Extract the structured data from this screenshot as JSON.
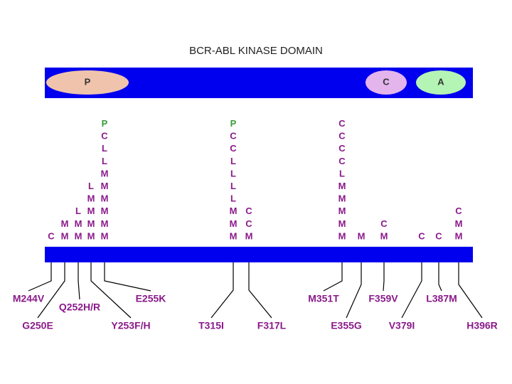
{
  "title": "BCR-ABL KINASE DOMAIN",
  "domains": [
    "P",
    "C",
    "A"
  ],
  "letter_colors": {
    "P": "#3a9a3a"
  },
  "mutations": [
    {
      "label": "M244V",
      "letters": [
        "C"
      ]
    },
    {
      "label": "G250E",
      "letters": [
        "M",
        "M"
      ]
    },
    {
      "label": "Q252H/R",
      "letters": [
        "L",
        "M",
        "M"
      ]
    },
    {
      "label": "Y253F/H",
      "letters": [
        "L",
        "M",
        "M",
        "M",
        "M"
      ]
    },
    {
      "label": "E255K",
      "letters": [
        "P",
        "C",
        "L",
        "L",
        "M",
        "M",
        "M",
        "M",
        "M",
        "M"
      ]
    },
    {
      "label": "T315I",
      "letters": [
        "P",
        "C",
        "C",
        "L",
        "L",
        "L",
        "L",
        "M",
        "M",
        "M"
      ]
    },
    {
      "label": "F317L",
      "letters": [
        "C",
        "C",
        "M"
      ]
    },
    {
      "label": "M351T",
      "letters": [
        "C",
        "C",
        "C",
        "C",
        "L",
        "M",
        "M",
        "M",
        "M",
        "M"
      ]
    },
    {
      "label": "E355G",
      "letters": [
        "M"
      ]
    },
    {
      "label": "F359V",
      "letters": [
        "C",
        "M"
      ]
    },
    {
      "label": "V379I",
      "letters": [
        "C"
      ]
    },
    {
      "label": "L387M",
      "letters": [
        "C"
      ]
    },
    {
      "label": "H396R",
      "letters": [
        "C",
        "M",
        "M"
      ]
    }
  ]
}
